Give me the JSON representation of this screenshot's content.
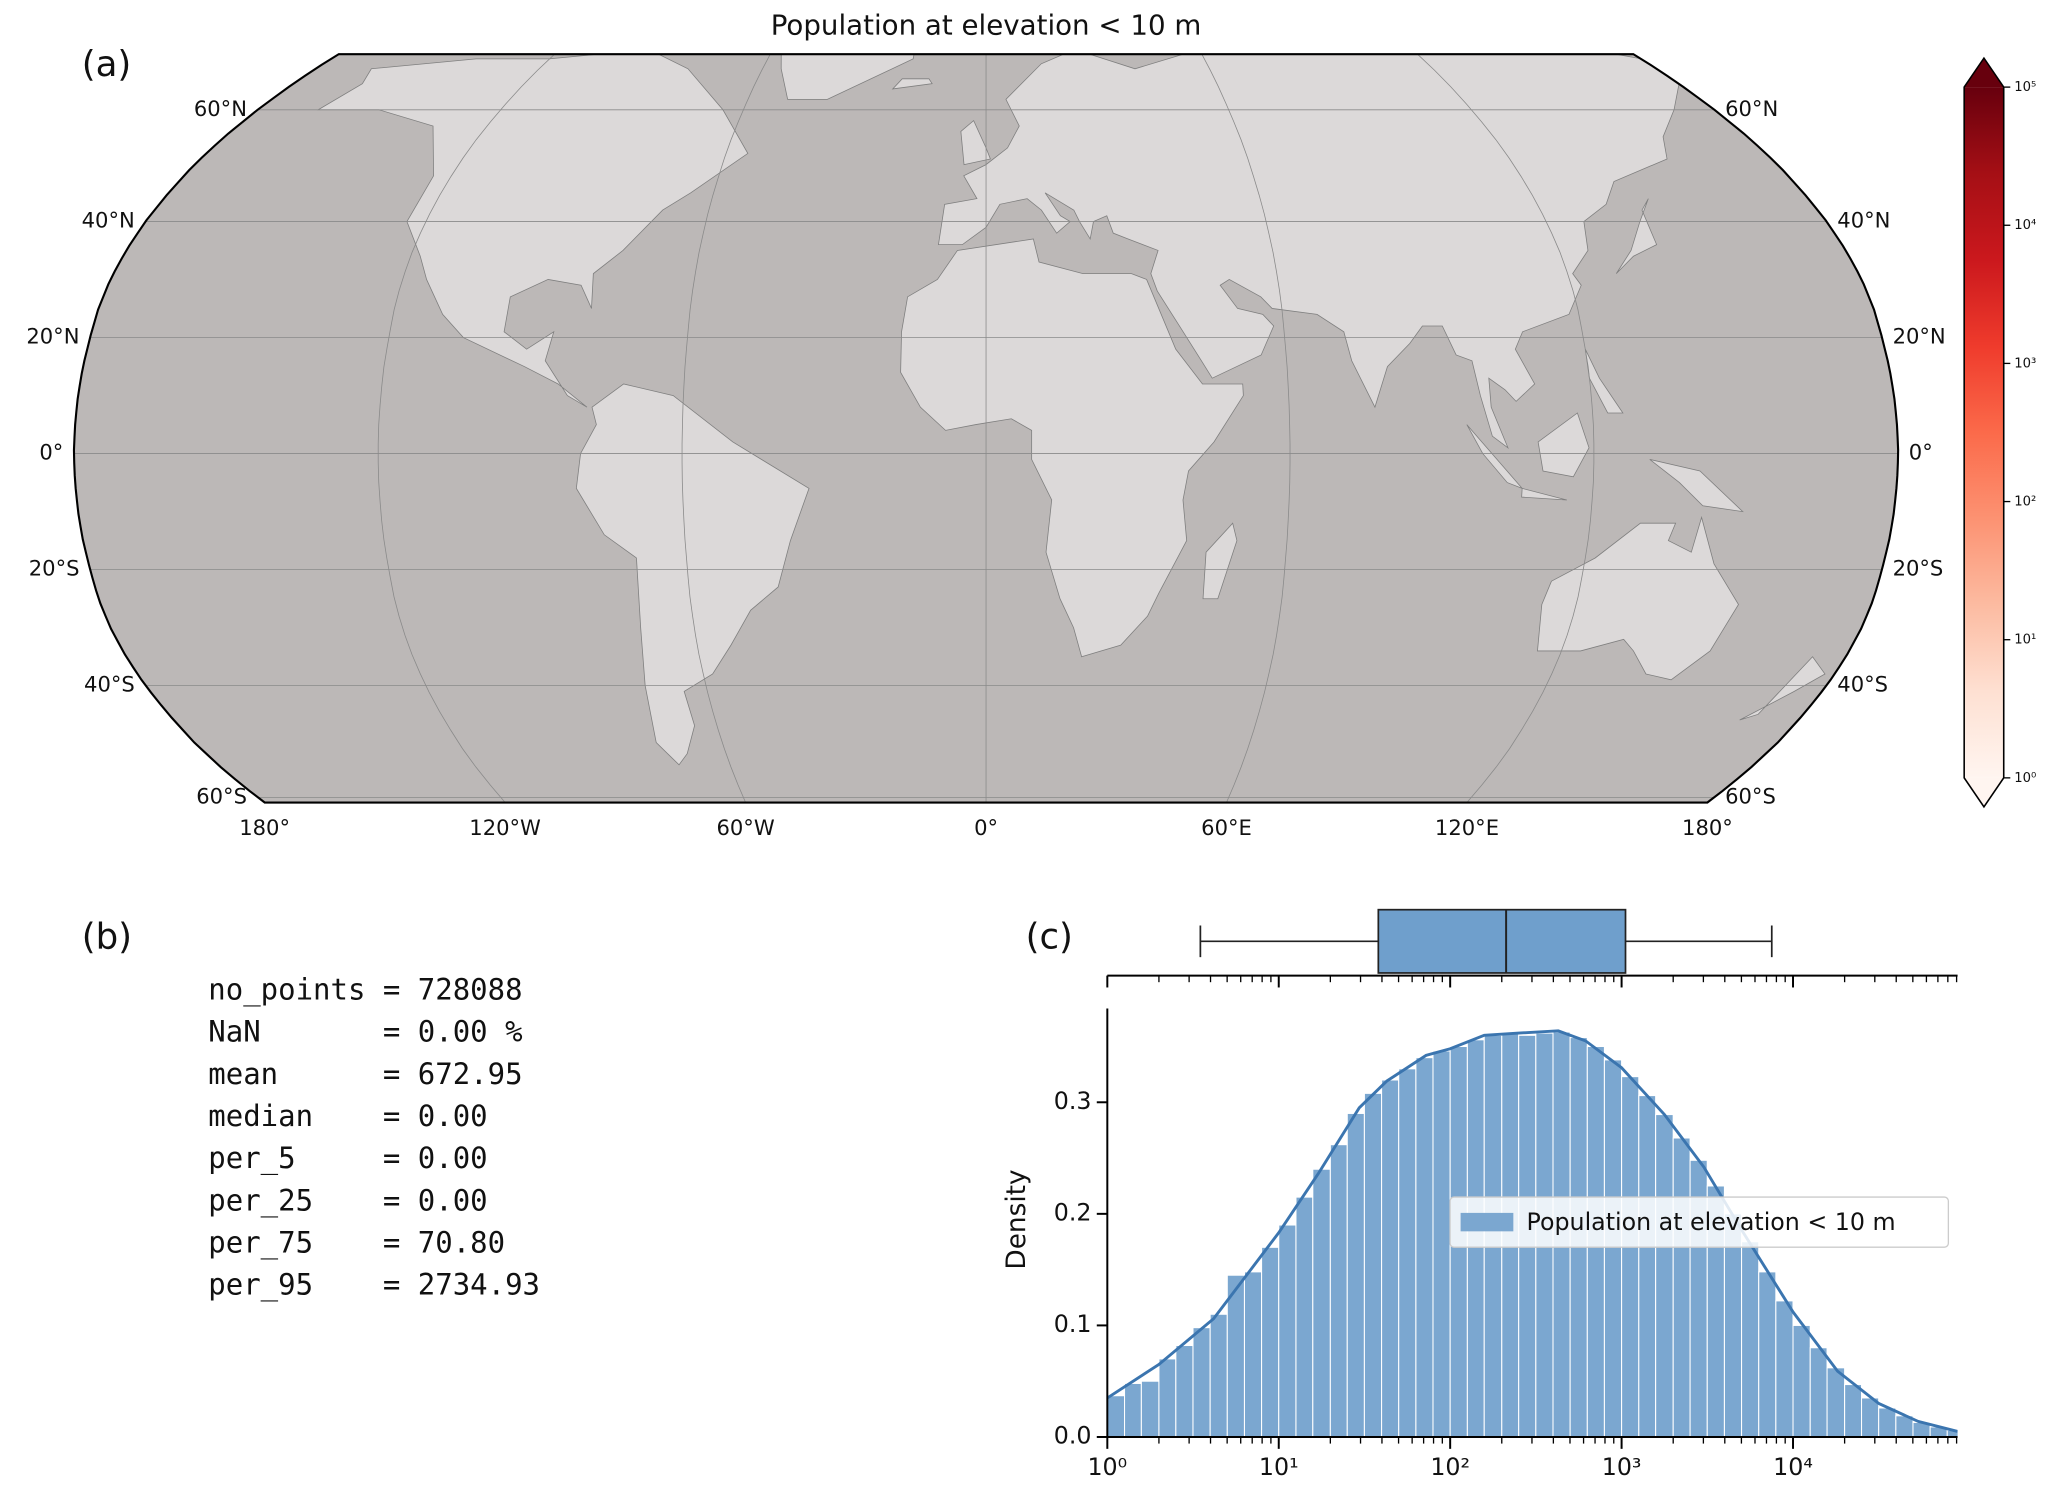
{
  "chart_data": [
    {
      "type": "map",
      "label": "(a)",
      "title": "Population at elevation < 10 m",
      "xlim": [
        -180,
        180
      ],
      "ylim": [
        -61,
        71
      ],
      "xticks": [
        {
          "value": -180,
          "label": "180°"
        },
        {
          "value": -120,
          "label": "120°W"
        },
        {
          "value": -60,
          "label": "60°W"
        },
        {
          "value": 0,
          "label": "0°"
        },
        {
          "value": 60,
          "label": "60°E"
        },
        {
          "value": 120,
          "label": "120°E"
        },
        {
          "value": 180,
          "label": "180°"
        }
      ],
      "yticks": [
        {
          "value": 60,
          "label": "60°N"
        },
        {
          "value": 40,
          "label": "40°N"
        },
        {
          "value": 20,
          "label": "20°N"
        },
        {
          "value": 0,
          "label": "0°"
        },
        {
          "value": -20,
          "label": "20°S"
        },
        {
          "value": -40,
          "label": "40°S"
        },
        {
          "value": -60,
          "label": "60°S"
        }
      ],
      "grid": true,
      "land_color": "#dcd9d9",
      "ocean_color": "#bcb8b7",
      "colorbar": {
        "log": true,
        "lim": [
          1,
          100000
        ],
        "ticks": [
          {
            "value": 1,
            "label": "10⁰"
          },
          {
            "value": 10,
            "label": "10¹"
          },
          {
            "value": 100,
            "label": "10²"
          },
          {
            "value": 1000,
            "label": "10³"
          },
          {
            "value": 10000,
            "label": "10⁴"
          },
          {
            "value": 100000,
            "label": "10⁵"
          }
        ],
        "colors": [
          "#fff5f0",
          "#fee0d2",
          "#fcbba1",
          "#fc9272",
          "#fb6a4a",
          "#ef3b2c",
          "#cb181d",
          "#a50f15",
          "#67000d"
        ]
      }
    },
    {
      "type": "histogram",
      "label": "(c)",
      "ylabel": "Density",
      "xscale": "log",
      "xlim": [
        1,
        91201
      ],
      "ylim": [
        0,
        0.384
      ],
      "xticks": [
        {
          "value": 1,
          "label": "10⁰"
        },
        {
          "value": 10,
          "label": "10¹"
        },
        {
          "value": 100,
          "label": "10²"
        },
        {
          "value": 1000,
          "label": "10³"
        },
        {
          "value": 10000,
          "label": "10⁴"
        }
      ],
      "xminor_ticks": [
        2,
        3,
        4,
        5,
        6,
        7,
        8,
        9,
        20,
        30,
        40,
        50,
        60,
        70,
        80,
        90,
        200,
        300,
        400,
        500,
        600,
        700,
        800,
        900,
        2000,
        3000,
        4000,
        5000,
        6000,
        7000,
        8000,
        9000,
        20000,
        30000,
        40000,
        50000,
        60000,
        70000,
        80000,
        90000
      ],
      "yticks": [
        {
          "value": 0,
          "label": "0.0"
        },
        0.1,
        0.2,
        0.3
      ],
      "legend": "center right",
      "bins": [
        1,
        1.26,
        1.58,
        2,
        2.51,
        3.16,
        3.98,
        5.01,
        6.31,
        7.94,
        10,
        12.6,
        15.8,
        20,
        25.1,
        31.6,
        39.8,
        50.1,
        63.1,
        79.4,
        100,
        126,
        158,
        200,
        251,
        316,
        398,
        501,
        631,
        794,
        1000,
        1260,
        1580,
        2000,
        2510,
        3160,
        3980,
        5010,
        6310,
        7940,
        10000,
        12600,
        15800,
        20000,
        25100,
        31600,
        39800,
        50100,
        63100,
        79400,
        100000
      ],
      "series": [
        {
          "name": "Population at elevation < 10 m",
          "color": "#7ba7d0",
          "values": [
            0.037,
            0.048,
            0.05,
            0.07,
            0.082,
            0.098,
            0.11,
            0.145,
            0.148,
            0.17,
            0.19,
            0.215,
            0.24,
            0.262,
            0.29,
            0.308,
            0.32,
            0.33,
            0.34,
            0.346,
            0.35,
            0.356,
            0.36,
            0.362,
            0.36,
            0.362,
            0.363,
            0.358,
            0.35,
            0.338,
            0.323,
            0.306,
            0.289,
            0.268,
            0.248,
            0.225,
            0.2,
            0.175,
            0.148,
            0.122,
            0.1,
            0.08,
            0.062,
            0.047,
            0.035,
            0.026,
            0.019,
            0.013,
            0.009,
            0.006
          ]
        }
      ],
      "kde": {
        "color": "#3b75af",
        "x": [
          1,
          2,
          4.17,
          10,
          17,
          29.5,
          42.7,
          72.4,
          100,
          158,
          251,
          427,
          617,
          1000,
          1778,
          3020,
          5129,
          10000,
          18197,
          31623,
          53703,
          91201
        ],
        "y": [
          0.035,
          0.065,
          0.106,
          0.183,
          0.236,
          0.295,
          0.319,
          0.342,
          0.348,
          0.36,
          0.362,
          0.364,
          0.355,
          0.331,
          0.289,
          0.242,
          0.183,
          0.112,
          0.059,
          0.03,
          0.014,
          0.005
        ]
      },
      "box": {
        "color": "#6f9fcc",
        "whislo": 3.49,
        "q1": 38.1,
        "med": 212,
        "q3": 1054,
        "whishi": 7516
      }
    }
  ],
  "stats_panel": {
    "label": "(b)",
    "lines": [
      "no_points = 728088",
      "NaN       = 0.00 %",
      "mean      = 672.95",
      "median    = 0.00",
      "per_5     = 0.00",
      "per_25    = 0.00",
      "per_75    = 70.80",
      "per_95    = 2734.93"
    ]
  }
}
